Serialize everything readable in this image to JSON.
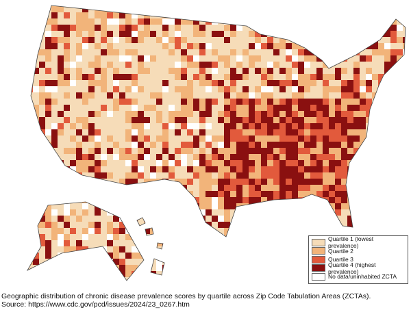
{
  "legend": {
    "items": [
      {
        "label": "Quartile 1 (lowest prevalence)",
        "color": "#f6dcb8"
      },
      {
        "label": "Quartile 2",
        "color": "#f2b47a"
      },
      {
        "label": "Quartile 3",
        "color": "#e25a3c"
      },
      {
        "label": "Quartile 4 (highest prevalence)",
        "color": "#8a1010"
      },
      {
        "label": "No data/uninhabited ZCTA",
        "color": "#ffffff"
      }
    ]
  },
  "caption": {
    "text": "Geographic distribution of chronic disease prevalence scores by quartile across Zip Code Tabulation Areas (ZCTAs).",
    "source": "Source: https://www.cdc.gov/pcd/issues/2024/23_0267.htm"
  }
}
